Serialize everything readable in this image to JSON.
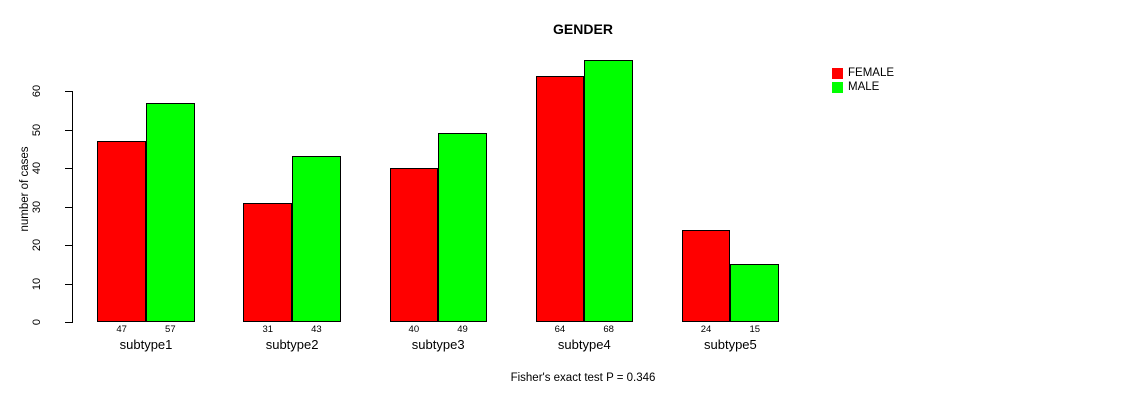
{
  "chart_data": {
    "type": "bar",
    "title": "GENDER",
    "ylabel": "number of cases",
    "xlabel": "",
    "footnote": "Fisher's exact test P = 0.346",
    "categories": [
      "subtype1",
      "subtype2",
      "subtype3",
      "subtype4",
      "subtype5"
    ],
    "series": [
      {
        "name": "FEMALE",
        "color": "#FF0000",
        "values": [
          47,
          31,
          40,
          64,
          24
        ]
      },
      {
        "name": "MALE",
        "color": "#00FF00",
        "values": [
          57,
          43,
          49,
          68,
          15
        ]
      }
    ],
    "yticks": [
      0,
      10,
      20,
      30,
      40,
      50,
      60
    ],
    "ylim": [
      0,
      68
    ],
    "grid": false,
    "legend_position": "top-right",
    "bar_value_labels": true,
    "bar_border_color": "#000000",
    "background_color": "#FFFFFF",
    "text_color": "#000000"
  }
}
